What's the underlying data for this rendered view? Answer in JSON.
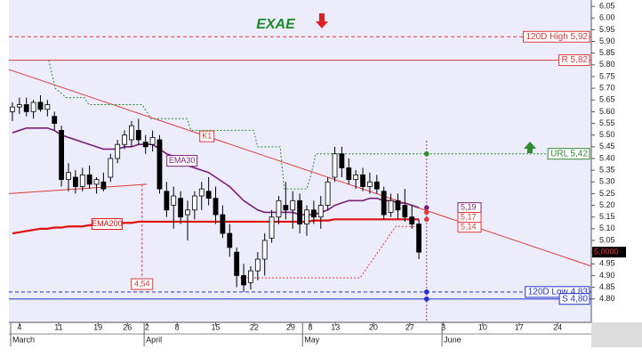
{
  "chart_data": {
    "type": "candlestick",
    "title": "EXAE",
    "xlim": [
      -0.5,
      82.6
    ],
    "ylim": [
      4.7,
      6.077
    ],
    "xticks": [
      {
        "value": 1.0,
        "label": "4"
      },
      {
        "value": 6.6,
        "label": "11"
      },
      {
        "value": 12.2,
        "label": "19"
      },
      {
        "value": 16.4,
        "label": "26"
      },
      {
        "value": 19.2,
        "label": "2"
      },
      {
        "value": 23.5,
        "label": "8"
      },
      {
        "value": 29.0,
        "label": "15"
      },
      {
        "value": 34.5,
        "label": "22"
      },
      {
        "value": 39.7,
        "label": "29"
      },
      {
        "value": 42.5,
        "label": "8"
      },
      {
        "value": 46.1,
        "label": "13"
      },
      {
        "value": 51.5,
        "label": "20"
      },
      {
        "value": 56.7,
        "label": "27"
      },
      {
        "value": 61.5,
        "label": "3"
      },
      {
        "value": 67.1,
        "label": "10"
      },
      {
        "value": 72.3,
        "label": "17"
      },
      {
        "value": 77.8,
        "label": "24"
      }
    ],
    "month_ticks": [
      {
        "value": -0.25,
        "label": "March"
      },
      {
        "value": 18.8,
        "label": "April"
      },
      {
        "value": 41.4,
        "label": "May"
      },
      {
        "value": 61.3,
        "label": "June"
      }
    ],
    "yticks": [
      6.05,
      {
        "value": 6.0,
        "label": "6.00"
      },
      5.95,
      {
        "value": 5.9,
        "label": "5.90"
      },
      5.85,
      {
        "value": 5.8,
        "label": "5.80"
      },
      5.75,
      {
        "value": 5.7,
        "label": "5.70"
      },
      5.65,
      {
        "value": 5.6,
        "label": "5.60"
      },
      5.55,
      {
        "value": 5.5,
        "label": "5.50"
      },
      5.45,
      {
        "value": 5.4,
        "label": "5.40"
      },
      5.35,
      {
        "value": 5.3,
        "label": "5.30"
      },
      5.25,
      {
        "value": 5.2,
        "label": "5.20"
      },
      5.15,
      {
        "value": 5.1,
        "label": "5.10"
      },
      5.05,
      {
        "value": 5.0,
        "label": "5.00"
      },
      4.95,
      {
        "value": 4.9,
        "label": "4.90"
      },
      4.85,
      {
        "value": 4.8,
        "label": "4.80"
      }
    ],
    "ohlc": [
      [
        5.6,
        5.64,
        5.56,
        5.62
      ],
      [
        5.62,
        5.66,
        5.59,
        5.63
      ],
      [
        5.63,
        5.66,
        5.58,
        5.6
      ],
      [
        5.6,
        5.65,
        5.57,
        5.64
      ],
      [
        5.64,
        5.67,
        5.6,
        5.61
      ],
      [
        5.61,
        5.65,
        5.58,
        5.63
      ],
      [
        5.58,
        5.6,
        5.52,
        5.55
      ],
      [
        5.52,
        5.54,
        5.28,
        5.31
      ],
      [
        5.31,
        5.38,
        5.26,
        5.34
      ],
      [
        5.32,
        5.35,
        5.25,
        5.28
      ],
      [
        5.28,
        5.36,
        5.26,
        5.33
      ],
      [
        5.33,
        5.37,
        5.27,
        5.29
      ],
      [
        5.29,
        5.32,
        5.25,
        5.31
      ],
      [
        5.3,
        5.34,
        5.26,
        5.27
      ],
      [
        5.32,
        5.42,
        5.3,
        5.4
      ],
      [
        5.4,
        5.48,
        5.38,
        5.46
      ],
      [
        5.46,
        5.52,
        5.44,
        5.5
      ],
      [
        5.48,
        5.56,
        5.45,
        5.54
      ],
      [
        5.52,
        5.57,
        5.46,
        5.48
      ],
      [
        5.47,
        5.5,
        5.42,
        5.45
      ],
      [
        5.46,
        5.52,
        5.43,
        5.49
      ],
      [
        5.48,
        5.5,
        5.25,
        5.27
      ],
      [
        5.26,
        5.3,
        5.15,
        5.18
      ],
      [
        5.2,
        5.28,
        5.1,
        5.24
      ],
      [
        5.23,
        5.26,
        5.12,
        5.15
      ],
      [
        5.16,
        5.22,
        5.05,
        5.18
      ],
      [
        5.18,
        5.26,
        5.14,
        5.24
      ],
      [
        5.24,
        5.3,
        5.18,
        5.27
      ],
      [
        5.26,
        5.32,
        5.2,
        5.23
      ],
      [
        5.23,
        5.28,
        5.12,
        5.16
      ],
      [
        5.16,
        5.2,
        5.06,
        5.08
      ],
      [
        5.08,
        5.12,
        4.98,
        5.02
      ],
      [
        5.0,
        5.02,
        4.85,
        4.9
      ],
      [
        4.9,
        4.95,
        4.83,
        4.86
      ],
      [
        4.87,
        4.94,
        4.84,
        4.92
      ],
      [
        4.92,
        5.0,
        4.88,
        4.97
      ],
      [
        4.97,
        5.08,
        4.9,
        5.05
      ],
      [
        5.06,
        5.18,
        5.04,
        5.15
      ],
      [
        5.15,
        5.24,
        5.12,
        5.22
      ],
      [
        5.2,
        5.3,
        5.14,
        5.18
      ],
      [
        5.18,
        5.26,
        5.1,
        5.22
      ],
      [
        5.22,
        5.25,
        5.08,
        5.12
      ],
      [
        5.12,
        5.2,
        5.07,
        5.18
      ],
      [
        5.18,
        5.22,
        5.12,
        5.15
      ],
      [
        5.15,
        5.24,
        5.1,
        5.2
      ],
      [
        5.2,
        5.32,
        5.18,
        5.3
      ],
      [
        5.32,
        5.45,
        5.3,
        5.42
      ],
      [
        5.42,
        5.45,
        5.32,
        5.36
      ],
      [
        5.36,
        5.4,
        5.29,
        5.31
      ],
      [
        5.31,
        5.35,
        5.27,
        5.33
      ],
      [
        5.33,
        5.36,
        5.26,
        5.28
      ],
      [
        5.28,
        5.34,
        5.25,
        5.3
      ],
      [
        5.3,
        5.33,
        5.25,
        5.27
      ],
      [
        5.26,
        5.28,
        5.14,
        5.16
      ],
      [
        5.17,
        5.25,
        5.15,
        5.22
      ],
      [
        5.22,
        5.25,
        5.14,
        5.18
      ],
      [
        5.2,
        5.27,
        5.13,
        5.15
      ],
      [
        5.15,
        5.2,
        5.1,
        5.12
      ],
      [
        5.12,
        5.14,
        4.97,
        5.0
      ]
    ],
    "indicators": [
      {
        "name": "EMA30",
        "color": "#7a1e7a",
        "values": [
          5.51,
          5.52,
          5.53,
          5.53,
          5.53,
          5.53,
          5.52,
          5.5,
          5.49,
          5.48,
          5.47,
          5.46,
          5.45,
          5.44,
          5.44,
          5.44,
          5.45,
          5.45,
          5.46,
          5.46,
          5.46,
          5.44,
          5.42,
          5.41,
          5.39,
          5.37,
          5.36,
          5.35,
          5.34,
          5.32,
          5.3,
          5.28,
          5.25,
          5.22,
          5.2,
          5.18,
          5.17,
          5.17,
          5.17,
          5.17,
          5.17,
          5.16,
          5.16,
          5.16,
          5.17,
          5.18,
          5.2,
          5.21,
          5.22,
          5.22,
          5.22,
          5.23,
          5.23,
          5.22,
          5.22,
          5.21,
          5.21,
          5.2,
          5.19
        ]
      },
      {
        "name": "EMA200",
        "color": "#e01010",
        "values": [
          5.08,
          5.085,
          5.09,
          5.095,
          5.1,
          5.1,
          5.105,
          5.105,
          5.11,
          5.11,
          5.11,
          5.115,
          5.115,
          5.12,
          5.12,
          5.12,
          5.125,
          5.125,
          5.13,
          5.13,
          5.13,
          5.13,
          5.13,
          5.13,
          5.13,
          5.13,
          5.13,
          5.13,
          5.13,
          5.13,
          5.13,
          5.13,
          5.13,
          5.13,
          5.13,
          5.13,
          5.13,
          5.13,
          5.13,
          5.13,
          5.13,
          5.13,
          5.13,
          5.135,
          5.135,
          5.135,
          5.14,
          5.14,
          5.14,
          5.14,
          5.14,
          5.14,
          5.14,
          5.14,
          5.14,
          5.14,
          5.14,
          5.14,
          5.14
        ]
      }
    ],
    "trendlines": [
      {
        "name": "K1",
        "color": "#e03a3a",
        "x": [
          -0.5,
          82.6
        ],
        "values": [
          5.78,
          4.94
        ]
      },
      {
        "color": "#e03a3a",
        "x": [
          -0.5,
          19.2
        ],
        "values": [
          5.25,
          5.29
        ]
      }
    ],
    "stops": [
      {
        "color": "#2e8b2e",
        "x": [
          5.2,
          6.1,
          7.7,
          10.3,
          10.9,
          18.5,
          19.8,
          24.9,
          25.5,
          34.4,
          35.0,
          38.2,
          38.8,
          42.0,
          42.6,
          43.3,
          59.1
        ],
        "values": [
          5.82,
          5.7,
          5.66,
          5.66,
          5.63,
          5.63,
          5.57,
          5.57,
          5.52,
          5.52,
          5.45,
          5.45,
          5.27,
          5.27,
          5.33,
          5.42,
          5.42
        ]
      },
      {
        "color": "#e03a3a",
        "x": [
          32.5,
          49.6,
          54.7,
          57.9
        ],
        "values": [
          4.89,
          4.89,
          5.11,
          5.11
        ]
      }
    ],
    "levels": [
      {
        "label": "120D High 5,92",
        "value": 5.92,
        "color": "#e03a3a",
        "style": "dashed"
      },
      {
        "label": "R 5,82",
        "value": 5.82,
        "color": "#e03a3a",
        "style": "solid"
      },
      {
        "label": "URL 5,42",
        "value": 5.42,
        "color": "#2e8b2e",
        "style": "dotted",
        "from": 59.1,
        "dot": true
      },
      {
        "label": "120D Low 4,83",
        "value": 4.83,
        "color": "#2233cc",
        "style": "dashed",
        "dot": true
      },
      {
        "label": "S 4,80",
        "value": 4.8,
        "color": "#2233cc",
        "style": "solid",
        "dot": true
      }
    ],
    "projection_x": 59.1,
    "price_labels": [
      {
        "label": "5,19",
        "value": 5.19,
        "color": "#7a1e7a"
      },
      {
        "label": "5,17",
        "value": 5.17,
        "color": "#e03a3a"
      },
      {
        "label": "5,14",
        "value": 5.14,
        "color": "#e03a3a"
      }
    ],
    "annotation": {
      "label": "4,54",
      "x": 18.5,
      "from": 5.29,
      "to": 4.89
    },
    "last": {
      "label": "5,0000",
      "value": 5.0
    }
  }
}
